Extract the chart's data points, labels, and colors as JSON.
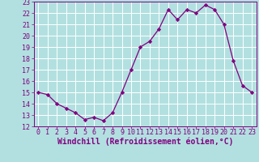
{
  "x": [
    0,
    1,
    2,
    3,
    4,
    5,
    6,
    7,
    8,
    9,
    10,
    11,
    12,
    13,
    14,
    15,
    16,
    17,
    18,
    19,
    20,
    21,
    22,
    23
  ],
  "y": [
    15.0,
    14.8,
    14.0,
    13.6,
    13.2,
    12.6,
    12.8,
    12.5,
    13.2,
    15.0,
    17.0,
    19.0,
    19.5,
    20.6,
    22.3,
    21.4,
    22.3,
    22.0,
    22.7,
    22.3,
    21.0,
    17.8,
    15.6,
    15.0
  ],
  "line_color": "#800080",
  "marker": "D",
  "marker_size": 2.2,
  "bg_color": "#b2e0e0",
  "grid_color": "#ffffff",
  "xlabel": "Windchill (Refroidissement éolien,°C)",
  "ylim": [
    12,
    23
  ],
  "xlim": [
    -0.5,
    23.5
  ],
  "yticks": [
    12,
    13,
    14,
    15,
    16,
    17,
    18,
    19,
    20,
    21,
    22,
    23
  ],
  "xticks": [
    0,
    1,
    2,
    3,
    4,
    5,
    6,
    7,
    8,
    9,
    10,
    11,
    12,
    13,
    14,
    15,
    16,
    17,
    18,
    19,
    20,
    21,
    22,
    23
  ],
  "tick_color": "#800080",
  "label_fontsize": 7,
  "tick_fontsize": 6
}
